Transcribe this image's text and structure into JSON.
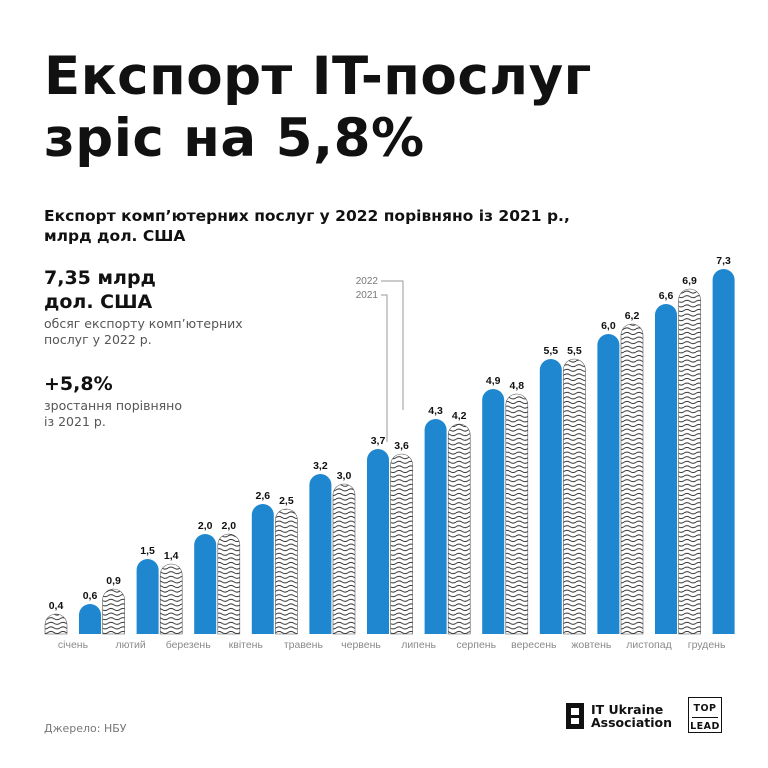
{
  "headline": {
    "line1": "Експорт IT-послуг",
    "line2": "зріс на 5,8%"
  },
  "subtitle": {
    "line1": "Експорт комп’ютерних послуг у 2022 порівняно із 2021 р.,",
    "line2": "млрд дол. США"
  },
  "stats": {
    "value1_line1": "7,35 млрд",
    "value1_line2": "дол. США",
    "desc1_line1": "обсяг експорту комп’ютерних",
    "desc1_line2": "послуг у 2022 р.",
    "value2": "+5,8%",
    "desc2_line1": "зростання порівняно",
    "desc2_line2": "із 2021 р."
  },
  "source": "Джерело: НБУ",
  "logos": {
    "itua_line1": "IT Ukraine",
    "itua_line2": "Association",
    "toplead_line1": "TOP",
    "toplead_line2": "LEAD"
  },
  "colors": {
    "bar_2022": "#1f87d0",
    "bar_2021_stroke": "#222222",
    "text": "#111111",
    "muted": "#777777"
  },
  "chart_data": {
    "type": "bar",
    "title": "Експорт комп’ютерних послуг у 2022 порівняно із 2021 р., млрд дол. США",
    "categories": [
      "січень",
      "лютий",
      "березень",
      "квітень",
      "травень",
      "червень",
      "липень",
      "серпень",
      "вересень",
      "жовтень",
      "листопад",
      "грудень"
    ],
    "series": [
      {
        "name": "2021",
        "values": [
          0.4,
          0.9,
          1.4,
          2.0,
          2.5,
          3.0,
          3.6,
          4.2,
          4.8,
          5.5,
          6.2,
          6.9
        ],
        "labels": [
          "0,4",
          "0,9",
          "1,4",
          "2,0",
          "2,5",
          "3,0",
          "3,6",
          "4,2",
          "4,8",
          "5,5",
          "6,2",
          "6,9"
        ]
      },
      {
        "name": "2022",
        "values": [
          0.6,
          1.5,
          2.0,
          2.6,
          3.2,
          3.7,
          4.3,
          4.9,
          5.5,
          6.0,
          6.6,
          7.3
        ],
        "labels": [
          "0,6",
          "1,5",
          "2,0",
          "2,6",
          "3,2",
          "3,7",
          "4,3",
          "4,9",
          "5,5",
          "6,0",
          "6,6",
          "7,3"
        ]
      }
    ],
    "legend_position": "top (pointer to July bars)",
    "ylim": [
      0,
      7.3
    ],
    "grid": false
  }
}
